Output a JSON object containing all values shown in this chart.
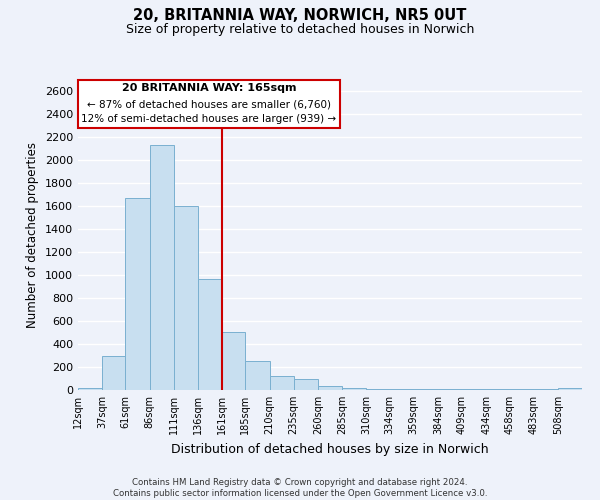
{
  "title": "20, BRITANNIA WAY, NORWICH, NR5 0UT",
  "subtitle": "Size of property relative to detached houses in Norwich",
  "xlabel": "Distribution of detached houses by size in Norwich",
  "ylabel": "Number of detached properties",
  "bar_labels": [
    "12sqm",
    "37sqm",
    "61sqm",
    "86sqm",
    "111sqm",
    "136sqm",
    "161sqm",
    "185sqm",
    "210sqm",
    "235sqm",
    "260sqm",
    "285sqm",
    "310sqm",
    "334sqm",
    "359sqm",
    "384sqm",
    "409sqm",
    "434sqm",
    "458sqm",
    "483sqm",
    "508sqm"
  ],
  "bar_values": [
    20,
    295,
    1670,
    2130,
    1600,
    965,
    505,
    250,
    120,
    95,
    35,
    15,
    5,
    5,
    5,
    5,
    5,
    5,
    5,
    5,
    20
  ],
  "bar_color": "#c8dff0",
  "bar_edge_color": "#7ab0d0",
  "bin_starts": [
    12,
    37,
    61,
    86,
    111,
    136,
    161,
    185,
    210,
    235,
    260,
    285,
    310,
    334,
    359,
    384,
    409,
    434,
    458,
    483,
    508
  ],
  "property_line_x": 161,
  "property_line_label": "20 BRITANNIA WAY: 165sqm",
  "annotation_line1": "← 87% of detached houses are smaller (6,760)",
  "annotation_line2": "12% of semi-detached houses are larger (939) →",
  "box_facecolor": "#ffffff",
  "box_edgecolor": "#cc0000",
  "line_color": "#cc0000",
  "ylim": [
    0,
    2700
  ],
  "yticks": [
    0,
    200,
    400,
    600,
    800,
    1000,
    1200,
    1400,
    1600,
    1800,
    2000,
    2200,
    2400,
    2600
  ],
  "footer_line1": "Contains HM Land Registry data © Crown copyright and database right 2024.",
  "footer_line2": "Contains public sector information licensed under the Open Government Licence v3.0.",
  "bg_color": "#eef2fa",
  "grid_color": "#ffffff"
}
